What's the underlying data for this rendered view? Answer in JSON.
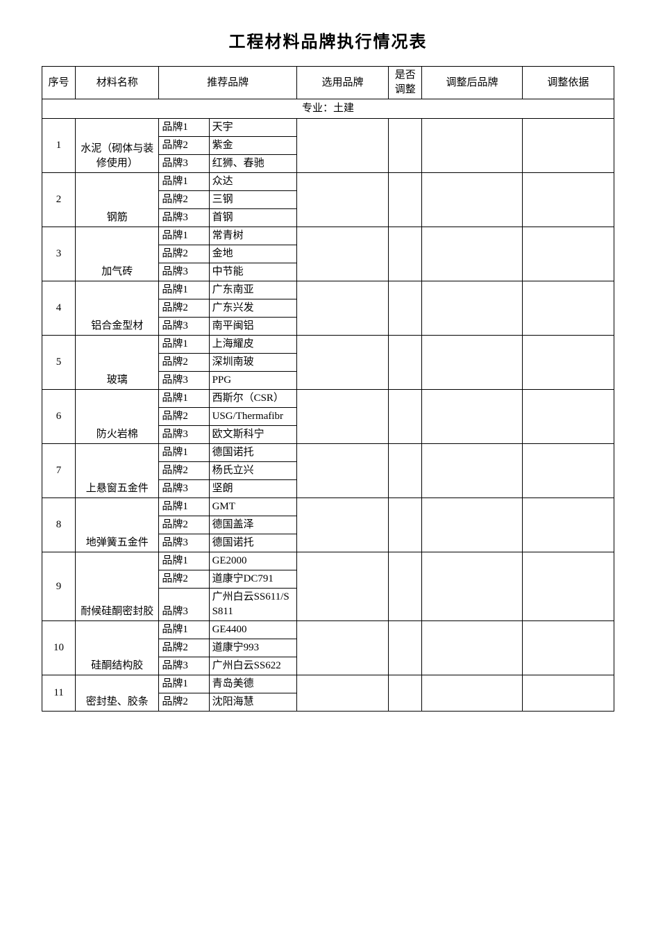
{
  "title": "工程材料品牌执行情况表",
  "columns": {
    "seq": "序号",
    "name": "材料名称",
    "recommended": "推荐品牌",
    "selected": "选用品牌",
    "adjust": "是否调整",
    "after": "调整后品牌",
    "basis": "调整依据"
  },
  "section_label": "专业：土建",
  "brand_labels": [
    "品牌1",
    "品牌2",
    "品牌3"
  ],
  "rows": [
    {
      "seq": "1",
      "name": "水泥（砌体与装修使用）",
      "brands": [
        "天宇",
        "紫金",
        "红狮、春驰"
      ]
    },
    {
      "seq": "2",
      "name": "钢筋",
      "brands": [
        "众达",
        "三钢",
        "首钢"
      ]
    },
    {
      "seq": "3",
      "name": "加气砖",
      "brands": [
        "常青树",
        "金地",
        "中节能"
      ]
    },
    {
      "seq": "4",
      "name": "铝合金型材",
      "brands": [
        "广东南亚",
        "广东兴发",
        "南平闽铝"
      ]
    },
    {
      "seq": "5",
      "name": "玻璃",
      "brands": [
        "上海耀皮",
        "深圳南玻",
        "PPG"
      ]
    },
    {
      "seq": "6",
      "name": "防火岩棉",
      "brands": [
        "西斯尔（CSR）",
        "USG/Thermafibr",
        "欧文斯科宁"
      ]
    },
    {
      "seq": "7",
      "name": "上悬窗五金件",
      "brands": [
        "德国诺托",
        "杨氏立兴",
        "坚朗"
      ]
    },
    {
      "seq": "8",
      "name": "地弹簧五金件",
      "brands": [
        "GMT",
        "德国盖泽",
        "德国诺托"
      ]
    },
    {
      "seq": "9",
      "name": "耐候硅酮密封胶",
      "brands": [
        "GE2000",
        "道康宁DC791",
        "广州白云SS611/SS811"
      ]
    },
    {
      "seq": "10",
      "name": "硅酮结构胶",
      "brands": [
        "GE4400",
        "道康宁993",
        "广州白云SS622"
      ]
    },
    {
      "seq": "11",
      "name": "密封垫、胶条",
      "brands": [
        "青岛美德",
        "沈阳海慧"
      ]
    }
  ],
  "style": {
    "background_color": "#ffffff",
    "border_color": "#000000",
    "title_fontsize": 24,
    "cell_fontsize": 15,
    "font_family": "SimSun"
  }
}
